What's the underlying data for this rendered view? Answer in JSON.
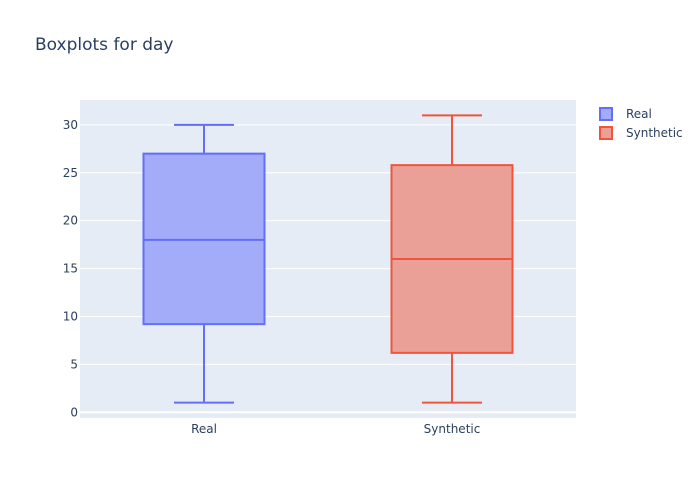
{
  "chart_data": {
    "type": "box",
    "title": "Boxplots for day",
    "xlabel": "",
    "ylabel": "",
    "categories": [
      "Real",
      "Synthetic"
    ],
    "ylim": [
      -0.6,
      32.6
    ],
    "yticks": [
      0,
      5,
      10,
      15,
      20,
      25,
      30
    ],
    "grid": true,
    "legend_position": "top-right",
    "series": [
      {
        "name": "Real",
        "min": 1,
        "q1": 9.2,
        "median": 18,
        "q3": 27,
        "max": 30,
        "fill": "#a3acf8",
        "line": "#636efa"
      },
      {
        "name": "Synthetic",
        "min": 1,
        "q1": 6.2,
        "median": 16,
        "q3": 25.8,
        "max": 31,
        "fill": "#eaa096",
        "line": "#ef553b"
      }
    ]
  },
  "colors": {
    "plot_bg": "#e5ecf6",
    "grid": "#ffffff",
    "text": "#2a3f5f"
  }
}
